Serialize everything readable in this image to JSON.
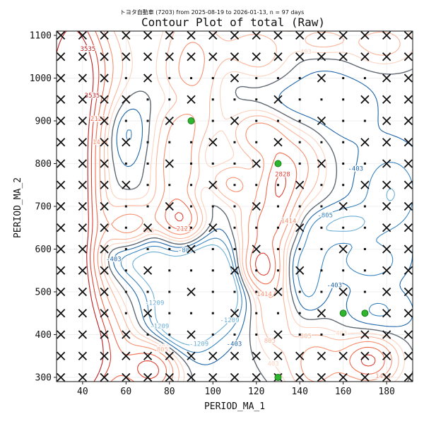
{
  "chart_data": {
    "type": "contour",
    "title": "Contour Plot of total (Raw)",
    "subtitle": "トヨタ自動車 (7203) from 2025-08-19 to 2026-01-13, n = 97 days",
    "xlabel": "PERIOD_MA_1",
    "ylabel": "PERIOD_MA_2",
    "xlim": [
      28,
      192
    ],
    "ylim": [
      290,
      1110
    ],
    "xticks": [
      40,
      60,
      80,
      100,
      120,
      140,
      160,
      180
    ],
    "yticks": [
      300,
      400,
      500,
      600,
      700,
      800,
      900,
      1000,
      1100
    ],
    "contour_levels": [
      -1209,
      -805,
      -403,
      0,
      403,
      805,
      1414,
      2121,
      2828,
      3535
    ],
    "contour_labels": [
      "-1209",
      "-805",
      "-403",
      "403",
      "805",
      "1414",
      "2121",
      "2828",
      "3535"
    ],
    "grid_x": [
      30,
      40,
      50,
      60,
      70,
      80,
      90,
      100,
      110,
      120,
      130,
      140,
      150,
      160,
      170,
      180,
      190
    ],
    "grid_y": [
      300,
      350,
      400,
      450,
      500,
      550,
      600,
      650,
      700,
      750,
      800,
      850,
      900,
      950,
      1000,
      1050,
      1100
    ],
    "colors": {
      "positive": [
        "#fcd2bf",
        "#fbb49a",
        "#f7906f",
        "#f06a4c",
        "#dd3f31",
        "#bb1d1f"
      ],
      "negative": [
        "#6baed6",
        "#3a85c0",
        "#1c64a8"
      ],
      "zero": "#5f6872",
      "marker_x": "#111111",
      "best": "#2fb62f"
    },
    "best_points": [
      {
        "x": 90,
        "y": 900
      },
      {
        "x": 130,
        "y": 800
      },
      {
        "x": 160,
        "y": 450
      },
      {
        "x": 170,
        "y": 450
      },
      {
        "x": 130,
        "y": 300
      }
    ]
  }
}
